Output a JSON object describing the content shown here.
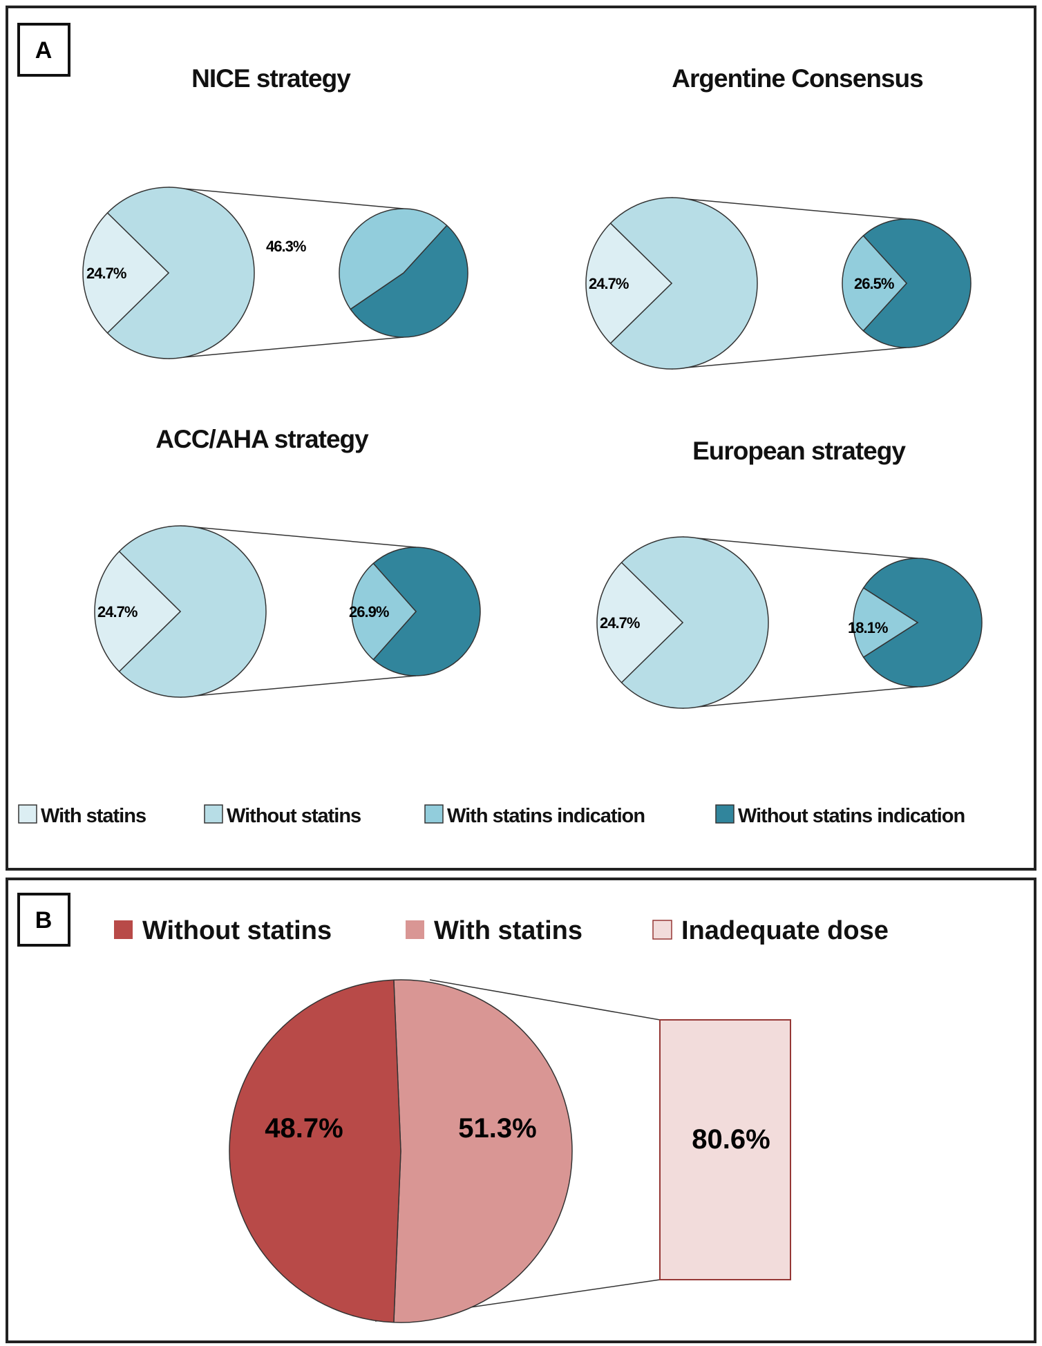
{
  "chart_data": [
    {
      "type": "pie",
      "panel": "A",
      "colors": {
        "with_statins": "#dceef3",
        "without_statins": "#b7dde6",
        "with_statins_indication": "#92cddc",
        "without_statins_indication": "#31859c"
      },
      "legend": [
        "With statins",
        "Without statins",
        "With statins indication",
        "Without statins indication"
      ],
      "charts": [
        {
          "title": "NICE strategy",
          "with_statins": 24.7,
          "with_statins_label": "24.7%",
          "with_statins_indication": 46.3,
          "indication_label": "46.3%"
        },
        {
          "title": "Argentine Consensus",
          "with_statins": 24.7,
          "with_statins_label": "24.7%",
          "with_statins_indication": 26.5,
          "indication_label": "26.5%"
        },
        {
          "title": "ACC/AHA strategy",
          "with_statins": 24.7,
          "with_statins_label": "24.7%",
          "with_statins_indication": 26.9,
          "indication_label": "26.9%"
        },
        {
          "title": "European strategy",
          "with_statins": 24.7,
          "with_statins_label": "24.7%",
          "with_statins_indication": 18.1,
          "indication_label": "18.1%"
        }
      ]
    },
    {
      "type": "pie",
      "panel": "B",
      "colors": {
        "without_statins": "#b84a48",
        "with_statins": "#d99694",
        "inadequate_dose": "#f2dcdb",
        "box_border": "#953735"
      },
      "legend": [
        "Without statins",
        "With statins",
        "Inadequate dose"
      ],
      "values": [
        48.7,
        51.3
      ],
      "labels": [
        "48.7%",
        "51.3%"
      ],
      "inadequate_dose": 80.6,
      "inadequate_dose_label": "80.6%"
    }
  ],
  "panels": {
    "a_label": "A",
    "b_label": "B"
  }
}
